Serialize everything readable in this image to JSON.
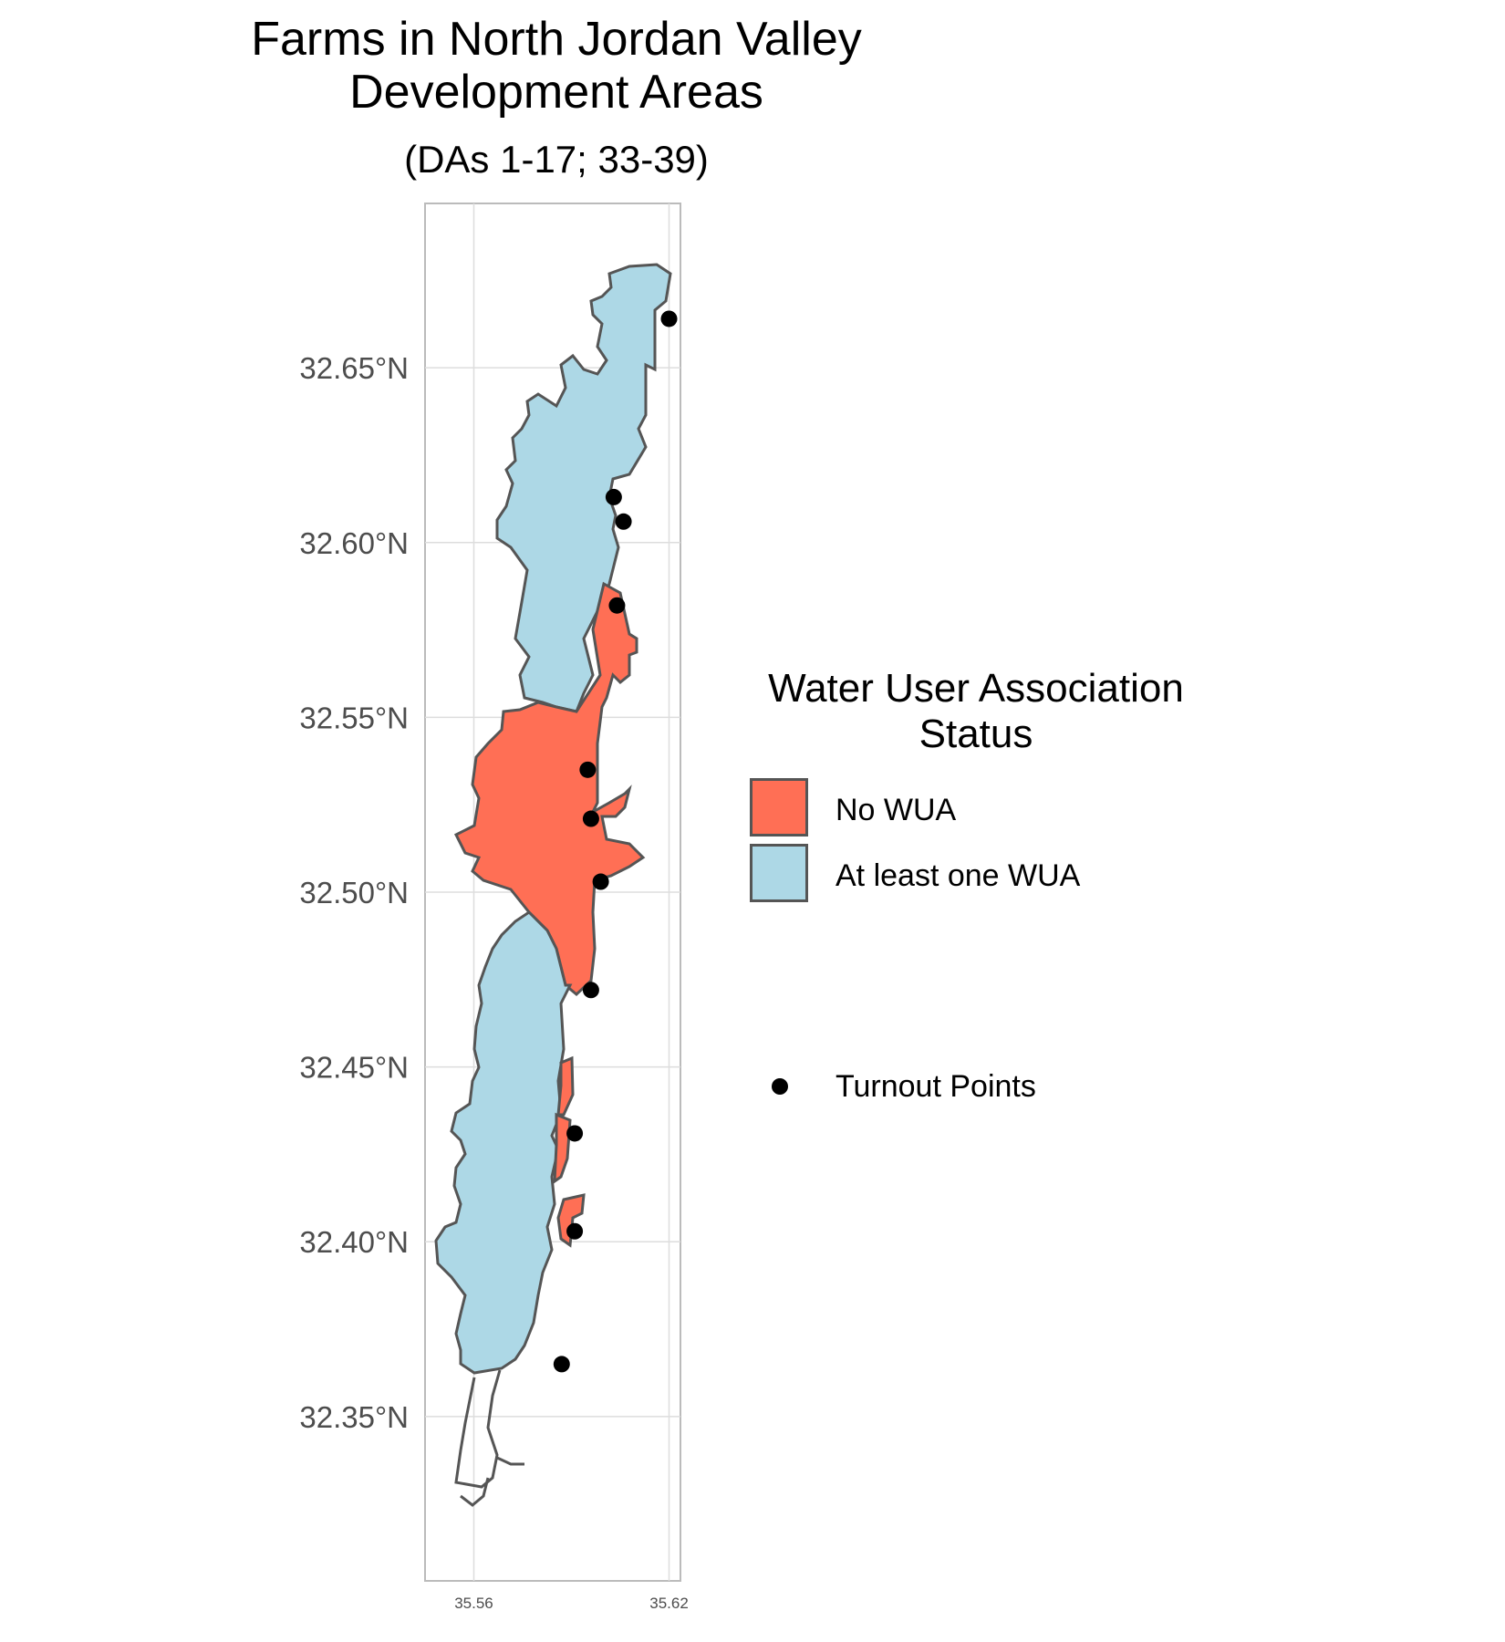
{
  "title": {
    "line1": "Farms in North Jordan Valley",
    "line2": "Development Areas",
    "subtitle": "(DAs 1-17; 33-39)"
  },
  "legend": {
    "title_line1": "Water User Association",
    "title_line2": "Status",
    "items": [
      {
        "label": "No WUA",
        "color": "#FF6F55"
      },
      {
        "label": "At least one WUA",
        "color": "#ADD8E6"
      }
    ],
    "points_label": "Turnout Points",
    "points_color": "#000000"
  },
  "chart_data": {
    "type": "scatter",
    "xlim": [
      35.545,
      35.6235
    ],
    "ylim": [
      32.303,
      32.697
    ],
    "x_ticks": [
      "35.56",
      "35.62"
    ],
    "y_ticks": [
      "32.35°N",
      "32.40°N",
      "32.45°N",
      "32.50°N",
      "32.55°N",
      "32.60°N",
      "32.65°N"
    ],
    "grid": true,
    "legend_position": "right",
    "regions": [
      {
        "name": "No WUA",
        "approx_lat_range": [
          32.4,
          32.59
        ]
      },
      {
        "name": "At least one WUA",
        "approx_lat_range": [
          32.355,
          32.68
        ]
      }
    ],
    "series": [
      {
        "name": "Turnout Points",
        "points": [
          {
            "lon": 35.62,
            "lat": 32.664
          },
          {
            "lon": 35.603,
            "lat": 32.613
          },
          {
            "lon": 35.606,
            "lat": 32.606
          },
          {
            "lon": 35.604,
            "lat": 32.582
          },
          {
            "lon": 35.595,
            "lat": 32.535
          },
          {
            "lon": 35.596,
            "lat": 32.521
          },
          {
            "lon": 35.599,
            "lat": 32.503
          },
          {
            "lon": 35.596,
            "lat": 32.472
          },
          {
            "lon": 35.591,
            "lat": 32.431
          },
          {
            "lon": 35.591,
            "lat": 32.403
          },
          {
            "lon": 35.587,
            "lat": 32.365
          }
        ]
      }
    ]
  }
}
